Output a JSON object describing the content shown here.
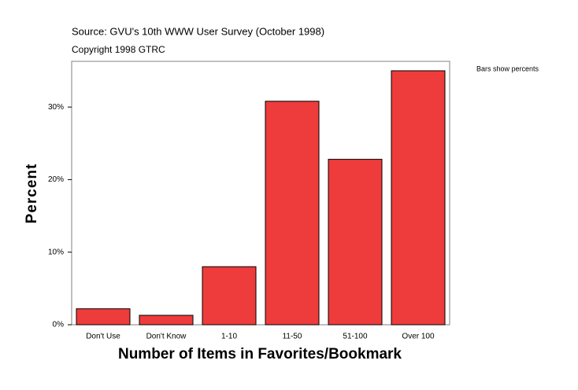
{
  "chart_data": {
    "type": "bar",
    "subtitle": "Source: GVU's 10th WWW User Survey (October 1998)",
    "copyright": "Copyright 1998 GTRC",
    "annotation": "Bars show percents",
    "x_label": "Number of Items in Favorites/Bookmark",
    "y_label": "Percent",
    "categories": [
      "Don't Use",
      "Don't Know",
      "1-10",
      "11-50",
      "51-100",
      "Over 100"
    ],
    "values": [
      2.2,
      1.3,
      8.0,
      30.8,
      22.8,
      35.0
    ],
    "color": "#ee3b3b",
    "ylim": [
      0,
      36.3
    ],
    "yticks": [
      {
        "value": 0,
        "label": "0%"
      },
      {
        "value": 10,
        "label": "10%"
      },
      {
        "value": 20,
        "label": "20%"
      },
      {
        "value": 30,
        "label": "30%"
      }
    ]
  }
}
